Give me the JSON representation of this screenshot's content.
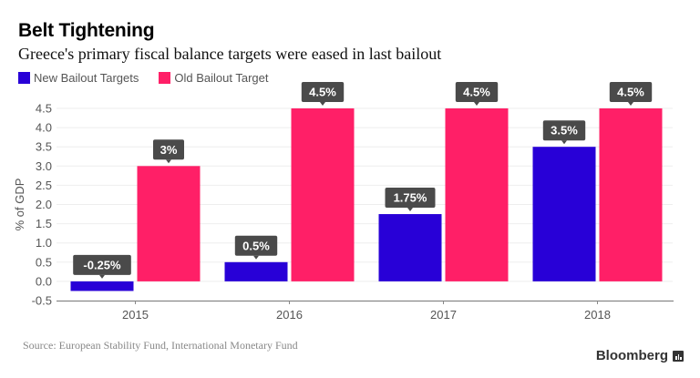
{
  "header": {
    "title": "Belt Tightening",
    "subtitle": "Greece's primary fiscal balance targets were eased in last bailout"
  },
  "footer": {
    "source": "Source: European Stability Fund, International Monetary Fund",
    "brand": "Bloomberg",
    "brand_icon": "bloomberg-chart-icon"
  },
  "colors": {
    "new": "#2800d7",
    "old": "#ff1f67",
    "label_bg": "#4a4a4a",
    "grid": "#eeeeee",
    "axis": "#888888",
    "tick_text": "#555555"
  },
  "chart_data": {
    "type": "bar",
    "title": "Belt Tightening",
    "subtitle": "Greece's primary fiscal balance targets were eased in last bailout",
    "xlabel": "",
    "ylabel": "% of GDP",
    "categories": [
      "2015",
      "2016",
      "2017",
      "2018"
    ],
    "series": [
      {
        "name": "New Bailout Targets",
        "values": [
          -0.25,
          0.5,
          1.75,
          3.5
        ],
        "labels": [
          "-0.25%",
          "0.5%",
          "1.75%",
          "3.5%"
        ]
      },
      {
        "name": "Old Bailout Target",
        "values": [
          3,
          4.5,
          4.5,
          4.5
        ],
        "labels": [
          "3%",
          "4.5%",
          "4.5%",
          "4.5%"
        ]
      }
    ],
    "ylim": [
      -0.5,
      4.5
    ],
    "yticks": [
      "-0.5",
      "0.0",
      "0.5",
      "1.0",
      "1.5",
      "2.0",
      "2.5",
      "3.0",
      "3.5",
      "4.0",
      "4.5"
    ],
    "grid": true,
    "legend": "top-left"
  }
}
